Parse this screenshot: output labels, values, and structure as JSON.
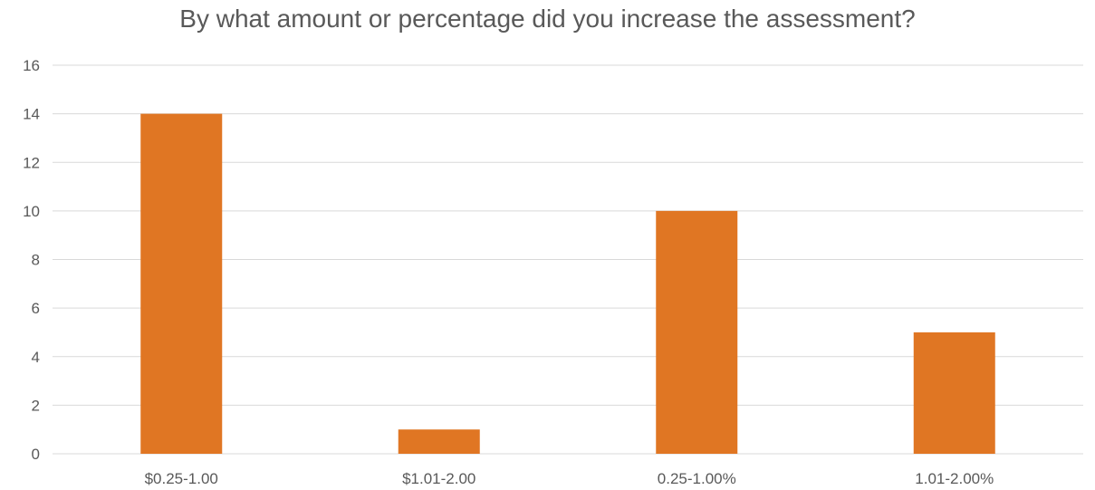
{
  "chart_data": {
    "type": "bar",
    "title": "By what amount or percentage did you increase the assessment?",
    "categories": [
      "$0.25-1.00",
      "$1.01-2.00",
      "0.25-1.00%",
      "1.01-2.00%"
    ],
    "values": [
      14,
      1,
      10,
      5
    ],
    "ylim": [
      0,
      16
    ],
    "yticks": [
      0,
      2,
      4,
      6,
      8,
      10,
      12,
      14,
      16
    ],
    "xlabel": "",
    "ylabel": "",
    "grid": true,
    "legend": "none",
    "bar_color": "#E07623",
    "grid_color": "#D9D9D9",
    "text_color": "#595959"
  }
}
